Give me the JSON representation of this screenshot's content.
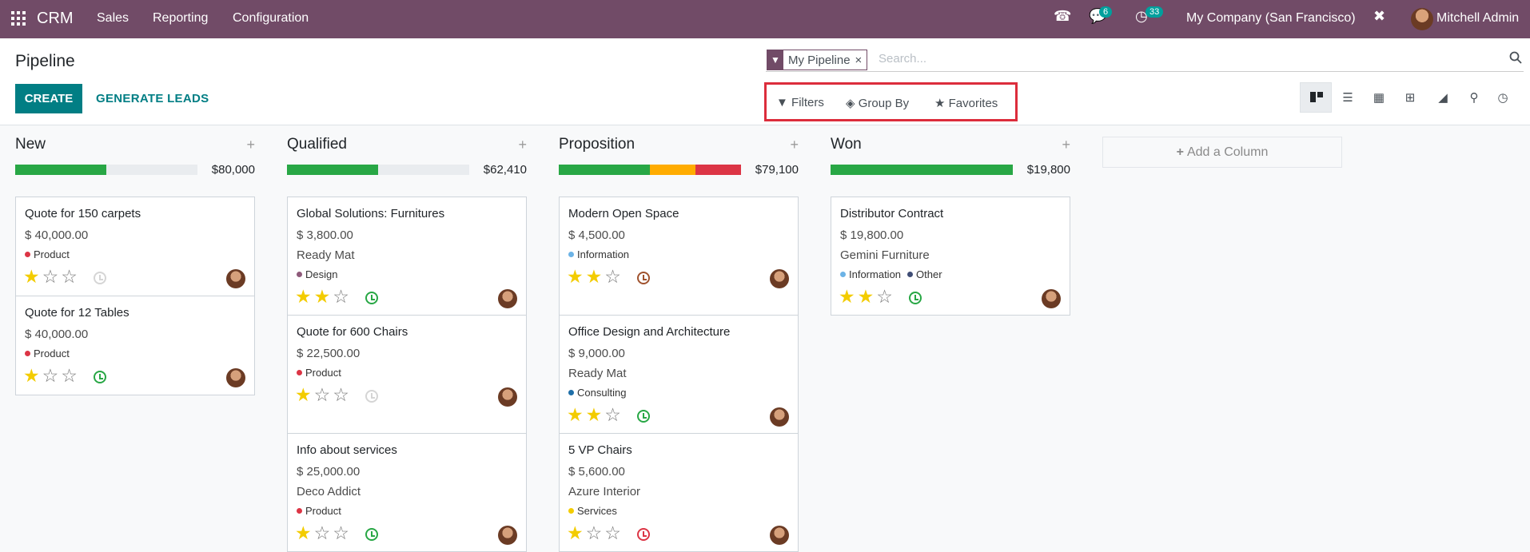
{
  "topbar": {
    "app_name": "CRM",
    "menu": [
      "Sales",
      "Reporting",
      "Configuration"
    ],
    "messages_count": "6",
    "activities_count": "33",
    "company": "My Company (San Francisco)",
    "user": "Mitchell Admin"
  },
  "control": {
    "title": "Pipeline",
    "create_label": "CREATE",
    "generate_label": "GENERATE LEADS",
    "facet_value": "My Pipeline",
    "facet_remove": "×",
    "search_placeholder": "Search...",
    "filters_label": "Filters",
    "groupby_label": "Group By",
    "favorites_label": "Favorites"
  },
  "colors": {
    "topbar": "#714b67",
    "primary": "#017e84",
    "highlight_box": "#dc2d3c",
    "green": "#28a745",
    "orange": "#ffac00",
    "red": "#dc3545",
    "star": "#f3cc00"
  },
  "columns": [
    {
      "title": "New",
      "amount": "$80,000",
      "progress": {
        "green": 0.5,
        "orange": 0,
        "red": 0
      },
      "cards": [
        {
          "name": "Quote for 150 carpets",
          "revenue": "$ 40,000.00",
          "partner": "",
          "tags": [
            {
              "label": "Product",
              "color": "#dc3545"
            }
          ],
          "stars": 1,
          "activity": "none"
        },
        {
          "name": "Quote for 12 Tables",
          "revenue": "$ 40,000.00",
          "partner": "",
          "tags": [
            {
              "label": "Product",
              "color": "#dc3545"
            }
          ],
          "stars": 1,
          "activity": "planned"
        }
      ]
    },
    {
      "title": "Qualified",
      "amount": "$62,410",
      "progress": {
        "green": 0.5,
        "orange": 0,
        "red": 0
      },
      "cards": [
        {
          "name": "Global Solutions: Furnitures",
          "revenue": "$ 3,800.00",
          "partner": "Ready Mat",
          "tags": [
            {
              "label": "Design",
              "color": "#8e5a7a"
            }
          ],
          "stars": 2,
          "activity": "planned"
        },
        {
          "name": "Quote for 600 Chairs",
          "revenue": "$ 22,500.00",
          "partner": "",
          "tags": [
            {
              "label": "Product",
              "color": "#dc3545"
            }
          ],
          "stars": 1,
          "activity": "none"
        },
        {
          "name": "Info about services",
          "revenue": "$ 25,000.00",
          "partner": "Deco Addict",
          "tags": [
            {
              "label": "Product",
              "color": "#dc3545"
            }
          ],
          "stars": 1,
          "activity": "planned"
        }
      ]
    },
    {
      "title": "Proposition",
      "amount": "$79,100",
      "progress": {
        "green": 0.5,
        "orange": 0.25,
        "red": 0.25
      },
      "cards": [
        {
          "name": "Modern Open Space",
          "revenue": "$ 4,500.00",
          "partner": "",
          "tags": [
            {
              "label": "Information",
              "color": "#6cb3e6"
            }
          ],
          "stars": 2,
          "activity": "today"
        },
        {
          "name": "Office Design and Architecture",
          "revenue": "$ 9,000.00",
          "partner": "Ready Mat",
          "tags": [
            {
              "label": "Consulting",
              "color": "#1f6fa8"
            }
          ],
          "stars": 2,
          "activity": "planned"
        },
        {
          "name": "5 VP Chairs",
          "revenue": "$ 5,600.00",
          "partner": "Azure Interior",
          "tags": [
            {
              "label": "Services",
              "color": "#f3cc00"
            }
          ],
          "stars": 1,
          "activity": "overdue"
        }
      ]
    },
    {
      "title": "Won",
      "amount": "$19,800",
      "progress": {
        "green": 1,
        "orange": 0,
        "red": 0
      },
      "cards": [
        {
          "name": "Distributor Contract",
          "revenue": "$ 19,800.00",
          "partner": "Gemini Furniture",
          "tags": [
            {
              "label": "Information",
              "color": "#6cb3e6"
            },
            {
              "label": "Other",
              "color": "#3f4d75"
            }
          ],
          "stars": 2,
          "activity": "planned"
        }
      ]
    }
  ],
  "add_column_label": "Add a Column",
  "icons": {
    "apps": "apps-grid-icon",
    "phone": "phone-icon",
    "chat": "chat-icon",
    "clock": "clock-icon",
    "tools": "tools-icon",
    "search": "search-icon",
    "filter": "filter-icon",
    "layers": "layers-icon",
    "star": "star-icon",
    "kanban": "kanban-icon",
    "list": "list-icon",
    "calendar": "calendar-icon",
    "pivot": "pivot-icon",
    "graph": "graph-icon",
    "map": "map-marker-icon",
    "activity": "activity-icon"
  }
}
